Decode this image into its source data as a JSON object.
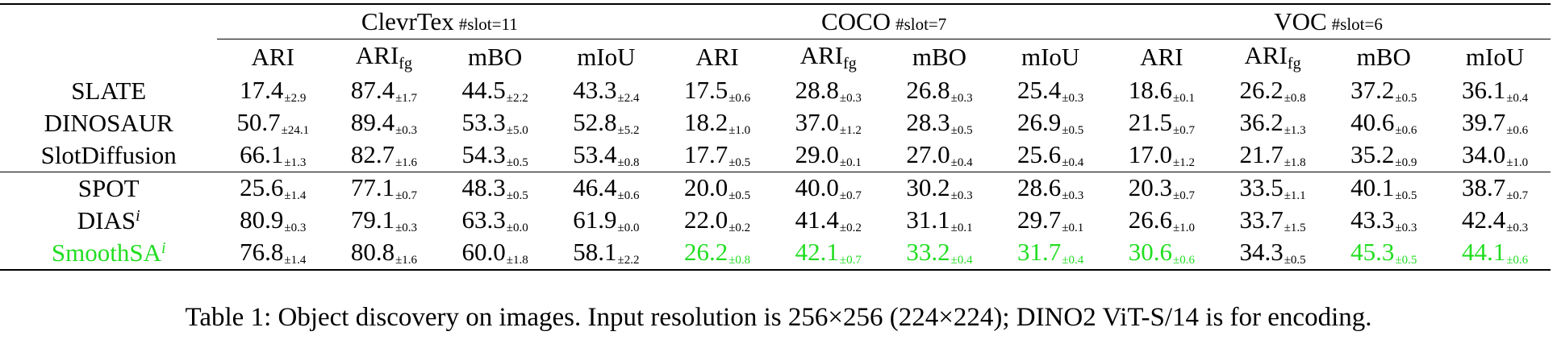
{
  "table": {
    "groups": [
      {
        "name": "ClevrTex",
        "slot": "#slot=11"
      },
      {
        "name": "COCO",
        "slot": "#slot=7"
      },
      {
        "name": "VOC",
        "slot": "#slot=6"
      }
    ],
    "metrics": [
      {
        "main": "ARI",
        "sub": ""
      },
      {
        "main": "ARI",
        "sub": "fg"
      },
      {
        "main": "mBO",
        "sub": ""
      },
      {
        "main": "mIoU",
        "sub": ""
      }
    ],
    "rows": [
      {
        "method": "SLATE",
        "sup": "",
        "highlight": false,
        "cells": [
          {
            "v": "17.4",
            "s": "±2.9",
            "hl": false
          },
          {
            "v": "87.4",
            "s": "±1.7",
            "hl": false
          },
          {
            "v": "44.5",
            "s": "±2.2",
            "hl": false
          },
          {
            "v": "43.3",
            "s": "±2.4",
            "hl": false
          },
          {
            "v": "17.5",
            "s": "±0.6",
            "hl": false
          },
          {
            "v": "28.8",
            "s": "±0.3",
            "hl": false
          },
          {
            "v": "26.8",
            "s": "±0.3",
            "hl": false
          },
          {
            "v": "25.4",
            "s": "±0.3",
            "hl": false
          },
          {
            "v": "18.6",
            "s": "±0.1",
            "hl": false
          },
          {
            "v": "26.2",
            "s": "±0.8",
            "hl": false
          },
          {
            "v": "37.2",
            "s": "±0.5",
            "hl": false
          },
          {
            "v": "36.1",
            "s": "±0.4",
            "hl": false
          }
        ]
      },
      {
        "method": "DINOSAUR",
        "sup": "",
        "highlight": false,
        "cells": [
          {
            "v": "50.7",
            "s": "±24.1",
            "hl": false
          },
          {
            "v": "89.4",
            "s": "±0.3",
            "hl": false
          },
          {
            "v": "53.3",
            "s": "±5.0",
            "hl": false
          },
          {
            "v": "52.8",
            "s": "±5.2",
            "hl": false
          },
          {
            "v": "18.2",
            "s": "±1.0",
            "hl": false
          },
          {
            "v": "37.0",
            "s": "±1.2",
            "hl": false
          },
          {
            "v": "28.3",
            "s": "±0.5",
            "hl": false
          },
          {
            "v": "26.9",
            "s": "±0.5",
            "hl": false
          },
          {
            "v": "21.5",
            "s": "±0.7",
            "hl": false
          },
          {
            "v": "36.2",
            "s": "±1.3",
            "hl": false
          },
          {
            "v": "40.6",
            "s": "±0.6",
            "hl": false
          },
          {
            "v": "39.7",
            "s": "±0.6",
            "hl": false
          }
        ]
      },
      {
        "method": "SlotDiffusion",
        "sup": "",
        "highlight": false,
        "cells": [
          {
            "v": "66.1",
            "s": "±1.3",
            "hl": false
          },
          {
            "v": "82.7",
            "s": "±1.6",
            "hl": false
          },
          {
            "v": "54.3",
            "s": "±0.5",
            "hl": false
          },
          {
            "v": "53.4",
            "s": "±0.8",
            "hl": false
          },
          {
            "v": "17.7",
            "s": "±0.5",
            "hl": false
          },
          {
            "v": "29.0",
            "s": "±0.1",
            "hl": false
          },
          {
            "v": "27.0",
            "s": "±0.4",
            "hl": false
          },
          {
            "v": "25.6",
            "s": "±0.4",
            "hl": false
          },
          {
            "v": "17.0",
            "s": "±1.2",
            "hl": false
          },
          {
            "v": "21.7",
            "s": "±1.8",
            "hl": false
          },
          {
            "v": "35.2",
            "s": "±0.9",
            "hl": false
          },
          {
            "v": "34.0",
            "s": "±1.0",
            "hl": false
          }
        ]
      },
      {
        "method": "SPOT",
        "sup": "",
        "highlight": false,
        "cells": [
          {
            "v": "25.6",
            "s": "±1.4",
            "hl": false
          },
          {
            "v": "77.1",
            "s": "±0.7",
            "hl": false
          },
          {
            "v": "48.3",
            "s": "±0.5",
            "hl": false
          },
          {
            "v": "46.4",
            "s": "±0.6",
            "hl": false
          },
          {
            "v": "20.0",
            "s": "±0.5",
            "hl": false
          },
          {
            "v": "40.0",
            "s": "±0.7",
            "hl": false
          },
          {
            "v": "30.2",
            "s": "±0.3",
            "hl": false
          },
          {
            "v": "28.6",
            "s": "±0.3",
            "hl": false
          },
          {
            "v": "20.3",
            "s": "±0.7",
            "hl": false
          },
          {
            "v": "33.5",
            "s": "±1.1",
            "hl": false
          },
          {
            "v": "40.1",
            "s": "±0.5",
            "hl": false
          },
          {
            "v": "38.7",
            "s": "±0.7",
            "hl": false
          }
        ]
      },
      {
        "method": "DIAS",
        "sup": "i",
        "highlight": false,
        "cells": [
          {
            "v": "80.9",
            "s": "±0.3",
            "hl": false
          },
          {
            "v": "79.1",
            "s": "±0.3",
            "hl": false
          },
          {
            "v": "63.3",
            "s": "±0.0",
            "hl": false
          },
          {
            "v": "61.9",
            "s": "±0.0",
            "hl": false
          },
          {
            "v": "22.0",
            "s": "±0.2",
            "hl": false
          },
          {
            "v": "41.4",
            "s": "±0.2",
            "hl": false
          },
          {
            "v": "31.1",
            "s": "±0.1",
            "hl": false
          },
          {
            "v": "29.7",
            "s": "±0.1",
            "hl": false
          },
          {
            "v": "26.6",
            "s": "±1.0",
            "hl": false
          },
          {
            "v": "33.7",
            "s": "±1.5",
            "hl": false
          },
          {
            "v": "43.3",
            "s": "±0.3",
            "hl": false
          },
          {
            "v": "42.4",
            "s": "±0.3",
            "hl": false
          }
        ]
      },
      {
        "method": "SmoothSA",
        "sup": "i",
        "highlight": true,
        "cells": [
          {
            "v": "76.8",
            "s": "±1.4",
            "hl": false
          },
          {
            "v": "80.8",
            "s": "±1.6",
            "hl": false
          },
          {
            "v": "60.0",
            "s": "±1.8",
            "hl": false
          },
          {
            "v": "58.1",
            "s": "±2.2",
            "hl": false
          },
          {
            "v": "26.2",
            "s": "±0.8",
            "hl": true
          },
          {
            "v": "42.1",
            "s": "±0.7",
            "hl": true
          },
          {
            "v": "33.2",
            "s": "±0.4",
            "hl": true
          },
          {
            "v": "31.7",
            "s": "±0.4",
            "hl": true
          },
          {
            "v": "30.6",
            "s": "±0.6",
            "hl": true
          },
          {
            "v": "34.3",
            "s": "±0.5",
            "hl": false
          },
          {
            "v": "45.3",
            "s": "±0.5",
            "hl": true
          },
          {
            "v": "44.1",
            "s": "±0.6",
            "hl": true
          }
        ]
      }
    ],
    "midrule_after_row": 2,
    "highlight_color": "#22dd22"
  },
  "caption": "Table 1: Object discovery on images. Input resolution is 256×256 (224×224); DINO2 ViT-S/14 is for encoding."
}
